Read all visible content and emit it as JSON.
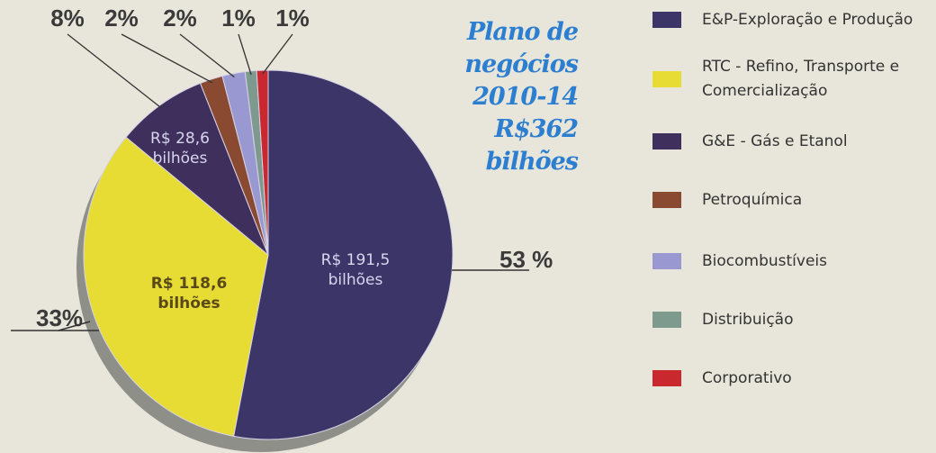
{
  "chart_data": {
    "type": "pie",
    "title": [
      "Plano de",
      "negócios",
      "2010-14",
      "R$362",
      "bilhões"
    ],
    "categories": [
      "E&P-Exploração e Produção",
      "RTC - Refino, Transporte e Comercialização",
      "G&E - Gás e Etanol",
      "Petroquímica",
      "Biocombustíveis",
      "Distribuição",
      "Corporativo"
    ],
    "values": [
      53,
      33,
      8,
      2,
      2,
      1,
      1
    ],
    "value_labels": [
      "53 %",
      "33%",
      "8%",
      "2%",
      "2%",
      "1%",
      "1%"
    ],
    "amount_labels": [
      "R$ 191,5 bilhões",
      "R$ 118,6 bilhões",
      "R$ 28,6 bilhões",
      null,
      null,
      null,
      null
    ],
    "colors": [
      "#3b3568",
      "#e6dc34",
      "#3e2f5c",
      "#8a4a32",
      "#9a98d0",
      "#7e9a8e",
      "#c8282e"
    ],
    "legend": "right"
  }
}
